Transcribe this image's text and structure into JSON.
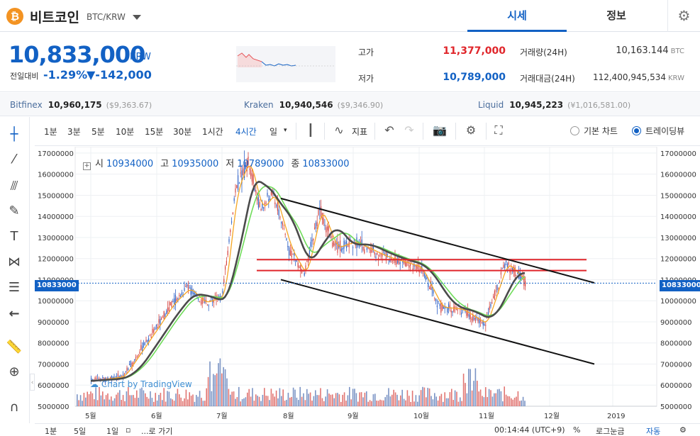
{
  "header": {
    "coin_logo": "₿",
    "coin_name": "비트코인",
    "pair": "BTC/KRW",
    "tab_price": "시세",
    "tab_info": "정보",
    "settings_icon": "gear-icon"
  },
  "summary": {
    "price": "10,833,000",
    "unit": "KRW",
    "change_label": "전일대비",
    "change_pct": "-1.29%",
    "change_amt": "▼-142,000",
    "high_label": "고가",
    "high_value": "11,377,000",
    "low_label": "저가",
    "low_value": "10,789,000",
    "volume_label": "거래량(24H)",
    "volume_value": "10,163.144",
    "volume_unit": "BTC",
    "amount_label": "거래대금(24H)",
    "amount_value": "112,400,945,534",
    "amount_unit": "KRW",
    "up_color": "#e0262b",
    "down_color": "#1261c4"
  },
  "exchanges": [
    {
      "name": "Bitfinex",
      "value": "10,960,175",
      "foreign": "($9,363.67)"
    },
    {
      "name": "Kraken",
      "value": "10,940,546",
      "foreign": "($9,346.90)"
    },
    {
      "name": "Liquid",
      "value": "10,945,223",
      "foreign": "(¥1,016,581.00)"
    }
  ],
  "toolbar": {
    "intervals": [
      "1분",
      "3분",
      "5분",
      "10분",
      "15분",
      "30분",
      "1시간",
      "4시간",
      "일"
    ],
    "active_interval": "4시간",
    "indicator_label": "지표",
    "view_basic": "기본 차트",
    "view_trading": "트레이딩뷰"
  },
  "legend": {
    "open_label": "시",
    "open": "10934000",
    "high_label": "고",
    "high": "10935000",
    "low_label": "저",
    "low": "10789000",
    "close_label": "종",
    "close": "10833000"
  },
  "watermark": "Chart by TradingView",
  "current_price_tag": "10833000",
  "bottombar": {
    "ranges": [
      "1분",
      "5일",
      "1일"
    ],
    "goto": "...로 가기",
    "time": "00:14:44 (UTC+9)",
    "percent": "%",
    "log": "로그눈금",
    "auto": "자동"
  },
  "chart_data": {
    "type": "candlestick",
    "y_ticks": [
      5000000,
      6000000,
      7000000,
      8000000,
      9000000,
      10000000,
      11000000,
      12000000,
      13000000,
      14000000,
      15000000,
      16000000,
      17000000
    ],
    "x_ticks": [
      "5월",
      "6월",
      "7월",
      "8월",
      "9월",
      "10월",
      "11월",
      "12월",
      "2019"
    ],
    "ylim": [
      5000000,
      17300000
    ],
    "price_path": [
      [
        "5월",
        6200000
      ],
      [
        "5월",
        6400000
      ],
      [
        "6월",
        8800000
      ],
      [
        "6월",
        9900000
      ],
      [
        "6월",
        10600000
      ],
      [
        "6월",
        9900000
      ],
      [
        "7월",
        10200000
      ],
      [
        "7월",
        15200000
      ],
      [
        "7월",
        16700000
      ],
      [
        "7월",
        14300000
      ],
      [
        "7월",
        15100000
      ],
      [
        "8월",
        12500000
      ],
      [
        "8월",
        11200000
      ],
      [
        "8월",
        14400000
      ],
      [
        "8월",
        12500000
      ],
      [
        "9월",
        12800000
      ],
      [
        "9월",
        12100000
      ],
      [
        "10월",
        11600000
      ],
      [
        "10월",
        9700000
      ],
      [
        "10월",
        9600000
      ],
      [
        "11월",
        8900000
      ],
      [
        "11월",
        11800000
      ],
      [
        "11월",
        10833000
      ]
    ],
    "channel_upper": [
      [
        "8월",
        14850000
      ],
      [
        "2019",
        10850000
      ]
    ],
    "channel_lower": [
      [
        "8월",
        11000000
      ],
      [
        "2019",
        7000000
      ]
    ],
    "resistance_lines": [
      11950000,
      11430000
    ],
    "current_price": 10833000
  }
}
